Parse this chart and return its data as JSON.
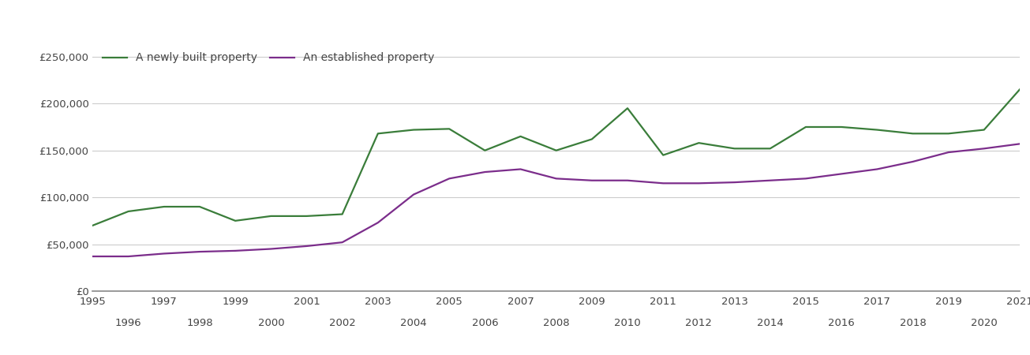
{
  "newly_built": {
    "years": [
      1995,
      1996,
      1997,
      1998,
      1999,
      2000,
      2001,
      2002,
      2003,
      2004,
      2005,
      2006,
      2007,
      2008,
      2009,
      2010,
      2011,
      2012,
      2013,
      2014,
      2015,
      2016,
      2017,
      2018,
      2019,
      2020,
      2021
    ],
    "values": [
      70000,
      85000,
      90000,
      90000,
      75000,
      80000,
      80000,
      82000,
      168000,
      172000,
      173000,
      150000,
      165000,
      150000,
      162000,
      195000,
      145000,
      158000,
      152000,
      152000,
      175000,
      175000,
      172000,
      168000,
      168000,
      172000,
      215000
    ]
  },
  "established": {
    "years": [
      1995,
      1996,
      1997,
      1998,
      1999,
      2000,
      2001,
      2002,
      2003,
      2004,
      2005,
      2006,
      2007,
      2008,
      2009,
      2010,
      2011,
      2012,
      2013,
      2014,
      2015,
      2016,
      2017,
      2018,
      2019,
      2020,
      2021
    ],
    "values": [
      37000,
      37000,
      40000,
      42000,
      43000,
      45000,
      48000,
      52000,
      73000,
      103000,
      120000,
      127000,
      130000,
      120000,
      118000,
      118000,
      115000,
      115000,
      116000,
      118000,
      120000,
      125000,
      130000,
      138000,
      148000,
      152000,
      157000
    ]
  },
  "newly_built_color": "#3a7d3a",
  "established_color": "#7b2d8b",
  "background_color": "#ffffff",
  "grid_color": "#cccccc",
  "yticks": [
    0,
    50000,
    100000,
    150000,
    200000,
    250000
  ],
  "ylim": [
    0,
    265000
  ],
  "xlim": [
    1995,
    2021
  ],
  "xticks_odd": [
    1995,
    1997,
    1999,
    2001,
    2003,
    2005,
    2007,
    2009,
    2011,
    2013,
    2015,
    2017,
    2019,
    2021
  ],
  "xticks_even": [
    1996,
    1998,
    2000,
    2002,
    2004,
    2006,
    2008,
    2010,
    2012,
    2014,
    2016,
    2018,
    2020
  ],
  "legend_newly": "A newly built property",
  "legend_established": "An established property",
  "text_color": "#444444",
  "line_width": 1.6
}
